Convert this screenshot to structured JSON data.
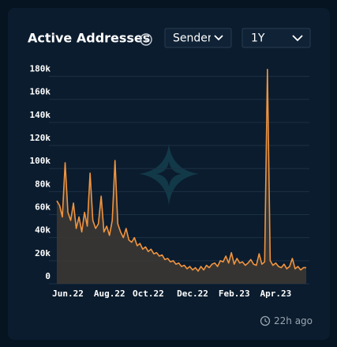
{
  "chart_data": {
    "type": "line",
    "title": "Active Addresses",
    "categories": [
      null,
      null,
      null,
      null,
      "Jun.22",
      null,
      null,
      null,
      null,
      null,
      null,
      null,
      null,
      null,
      null,
      null,
      null,
      null,
      null,
      "Aug.22",
      null,
      null,
      null,
      null,
      null,
      null,
      null,
      null,
      null,
      null,
      null,
      null,
      null,
      "Oct.22",
      null,
      null,
      null,
      null,
      null,
      null,
      null,
      null,
      null,
      null,
      null,
      null,
      null,
      null,
      null,
      "Dec.22",
      null,
      null,
      null,
      null,
      null,
      null,
      null,
      null,
      null,
      null,
      null,
      null,
      null,
      null,
      "Feb.23",
      null,
      null,
      null,
      null,
      null,
      null,
      null,
      null,
      null,
      null,
      null,
      null,
      null,
      null,
      "Apr.23",
      null,
      null,
      null,
      null,
      null,
      null,
      null,
      null,
      null,
      null,
      null
    ],
    "values": [
      72000,
      68000,
      58000,
      105000,
      62000,
      55000,
      70000,
      48000,
      58000,
      45000,
      62000,
      50000,
      96000,
      55000,
      48000,
      52000,
      76000,
      45000,
      50000,
      42000,
      55000,
      107000,
      52000,
      45000,
      40000,
      48000,
      38000,
      36000,
      40000,
      33000,
      35000,
      30000,
      32000,
      28000,
      30000,
      26000,
      27000,
      24000,
      25000,
      21000,
      22000,
      19000,
      20000,
      17000,
      18000,
      15000,
      16000,
      13000,
      15000,
      12000,
      14000,
      11000,
      15000,
      12000,
      16000,
      14000,
      17000,
      18000,
      15000,
      20000,
      19000,
      24000,
      18000,
      27000,
      17000,
      22000,
      18000,
      19000,
      16000,
      18000,
      21000,
      17000,
      16000,
      26000,
      17000,
      19000,
      186000,
      20000,
      16000,
      18000,
      15000,
      14000,
      17000,
      13000,
      15000,
      22000,
      13000,
      15000,
      12000,
      14000,
      14000
    ],
    "color": "#f0943f",
    "ylim": [
      0,
      190000
    ],
    "yticks": [
      0,
      {
        "value": 20000,
        "label": "20k"
      },
      {
        "value": 40000,
        "label": "40k"
      },
      {
        "value": 60000,
        "label": "60k"
      },
      {
        "value": 80000,
        "label": "80k"
      },
      {
        "value": 100000,
        "label": "100k"
      },
      {
        "value": 120000,
        "label": "120k"
      },
      {
        "value": 140000,
        "label": "140k"
      },
      {
        "value": 160000,
        "label": "160k"
      },
      {
        "value": 180000,
        "label": "180k"
      }
    ],
    "grid": true
  },
  "controls": {
    "metric": "Sender",
    "range": "1Y"
  },
  "updated": "22h ago"
}
